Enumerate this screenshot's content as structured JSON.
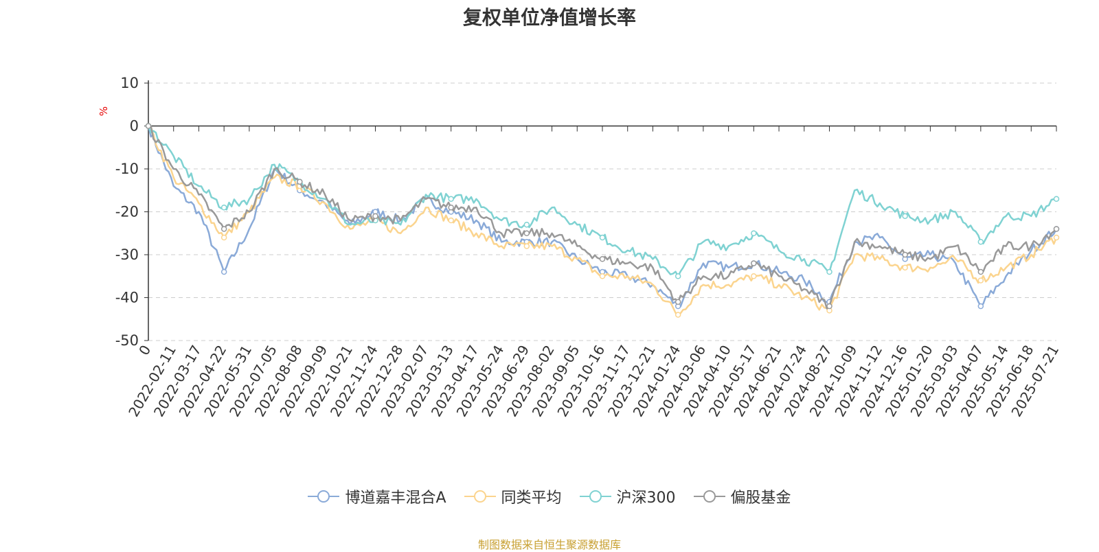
{
  "chart_data": {
    "type": "line",
    "title": "复权单位净值增长率",
    "ylabel": "%",
    "ylim": [
      -50,
      10
    ],
    "yticks": [
      10,
      0,
      -10,
      -20,
      -30,
      -40,
      -50
    ],
    "grid": true,
    "legend_position": "bottom",
    "x_tick_labels": [
      "0",
      "2022-02-11",
      "2022-03-17",
      "2022-04-22",
      "2022-05-31",
      "2022-07-05",
      "2022-08-08",
      "2022-09-09",
      "2022-10-21",
      "2022-11-24",
      "2022-12-28",
      "2023-02-07",
      "2023-03-13",
      "2023-04-17",
      "2023-05-24",
      "2023-06-29",
      "2023-08-02",
      "2023-09-05",
      "2023-10-16",
      "2023-11-17",
      "2023-12-21",
      "2024-01-24",
      "2024-03-06",
      "2024-04-10",
      "2024-05-17",
      "2024-06-21",
      "2024-07-24",
      "2024-08-27",
      "2024-10-09",
      "2024-11-12",
      "2024-12-16",
      "2025-01-20",
      "2025-03-03",
      "2025-04-07",
      "2025-05-14",
      "2025-06-18",
      "2025-07-21"
    ],
    "series": [
      {
        "name": "博道嘉丰混合A",
        "color": "#8aaad8",
        "values": [
          0,
          -14,
          -20,
          -34,
          -24,
          -10,
          -15,
          -18,
          -23,
          -20,
          -22,
          -17,
          -20,
          -22,
          -27,
          -27,
          -27,
          -31,
          -34,
          -35,
          -37,
          -42,
          -32,
          -33,
          -32,
          -34,
          -36,
          -41,
          -27,
          -26,
          -31,
          -30,
          -32,
          -42,
          -35,
          -29,
          -24
        ]
      },
      {
        "name": "同类平均",
        "color": "#fbd48e",
        "values": [
          0,
          -12,
          -18,
          -26,
          -20,
          -12,
          -14,
          -18,
          -24,
          -22,
          -25,
          -19,
          -22,
          -25,
          -28,
          -28,
          -28,
          -31,
          -35,
          -35,
          -37,
          -44,
          -37,
          -37,
          -35,
          -37,
          -40,
          -43,
          -30,
          -31,
          -33,
          -33,
          -31,
          -36,
          -33,
          -30,
          -26
        ]
      },
      {
        "name": "沪深300",
        "color": "#7fd2d2",
        "values": [
          0,
          -7,
          -14,
          -19,
          -17,
          -9,
          -13,
          -17,
          -23,
          -22,
          -23,
          -16,
          -17,
          -17,
          -22,
          -23,
          -19,
          -23,
          -26,
          -29,
          -31,
          -35,
          -27,
          -28,
          -25,
          -29,
          -31,
          -34,
          -15,
          -18,
          -21,
          -22,
          -20,
          -27,
          -21,
          -21,
          -17
        ]
      },
      {
        "name": "偏股基金",
        "color": "#999999",
        "values": [
          0,
          -10,
          -16,
          -24,
          -20,
          -10,
          -13,
          -16,
          -22,
          -21,
          -22,
          -17,
          -19,
          -19,
          -25,
          -25,
          -25,
          -28,
          -31,
          -32,
          -33,
          -41,
          -35,
          -35,
          -32,
          -35,
          -38,
          -42,
          -27,
          -28,
          -30,
          -31,
          -28,
          -34,
          -28,
          -28,
          -24
        ]
      }
    ]
  },
  "legend": {
    "items": [
      "博道嘉丰混合A",
      "同类平均",
      "沪深300",
      "偏股基金"
    ]
  },
  "footer": {
    "source_text": "制图数据来自恒生聚源数据库"
  }
}
